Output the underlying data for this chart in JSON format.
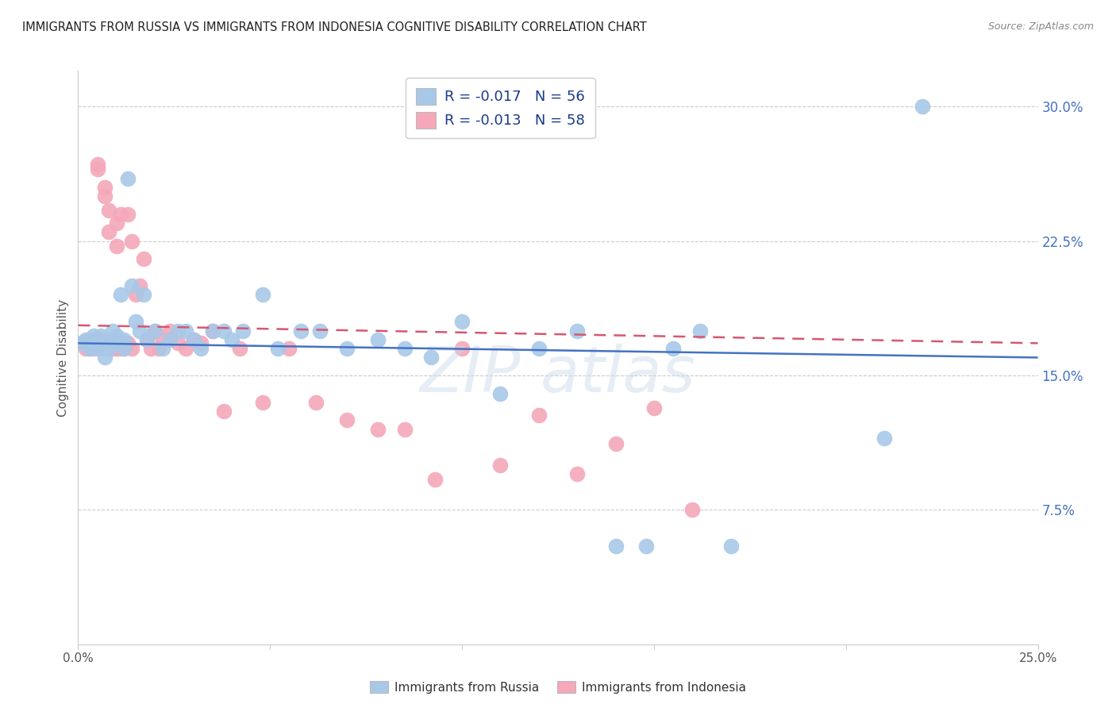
{
  "title": "IMMIGRANTS FROM RUSSIA VS IMMIGRANTS FROM INDONESIA COGNITIVE DISABILITY CORRELATION CHART",
  "source": "Source: ZipAtlas.com",
  "ylabel": "Cognitive Disability",
  "right_yticks": [
    "30.0%",
    "22.5%",
    "15.0%",
    "7.5%"
  ],
  "right_ytick_vals": [
    0.3,
    0.225,
    0.15,
    0.075
  ],
  "legend_r_russia": "R = -0.017",
  "legend_n_russia": "N = 56",
  "legend_r_indonesia": "R = -0.013",
  "legend_n_indonesia": "N = 58",
  "russia_color": "#a8c8e8",
  "indonesia_color": "#f4a8b8",
  "russia_line_color": "#4472c4",
  "indonesia_line_color": "#d45870",
  "xlim": [
    0.0,
    0.25
  ],
  "ylim": [
    0.0,
    0.32
  ],
  "russia_x": [
    0.001,
    0.002,
    0.003,
    0.004,
    0.004,
    0.005,
    0.005,
    0.006,
    0.006,
    0.007,
    0.007,
    0.008,
    0.008,
    0.009,
    0.009,
    0.01,
    0.01,
    0.011,
    0.012,
    0.012,
    0.013,
    0.014,
    0.015,
    0.016,
    0.017,
    0.018,
    0.02,
    0.022,
    0.024,
    0.026,
    0.028,
    0.03,
    0.032,
    0.035,
    0.038,
    0.04,
    0.043,
    0.048,
    0.052,
    0.058,
    0.063,
    0.07,
    0.078,
    0.085,
    0.092,
    0.1,
    0.11,
    0.12,
    0.13,
    0.14,
    0.148,
    0.155,
    0.162,
    0.17,
    0.21,
    0.22
  ],
  "russia_y": [
    0.168,
    0.17,
    0.165,
    0.172,
    0.168,
    0.17,
    0.165,
    0.168,
    0.172,
    0.165,
    0.16,
    0.17,
    0.165,
    0.175,
    0.168,
    0.172,
    0.168,
    0.195,
    0.17,
    0.165,
    0.26,
    0.2,
    0.18,
    0.175,
    0.195,
    0.17,
    0.175,
    0.165,
    0.17,
    0.175,
    0.175,
    0.17,
    0.165,
    0.175,
    0.175,
    0.17,
    0.175,
    0.195,
    0.165,
    0.175,
    0.175,
    0.165,
    0.17,
    0.165,
    0.16,
    0.18,
    0.14,
    0.165,
    0.175,
    0.055,
    0.055,
    0.165,
    0.175,
    0.055,
    0.115,
    0.3
  ],
  "indonesia_x": [
    0.001,
    0.002,
    0.003,
    0.003,
    0.004,
    0.004,
    0.005,
    0.005,
    0.006,
    0.006,
    0.007,
    0.007,
    0.007,
    0.008,
    0.008,
    0.009,
    0.009,
    0.01,
    0.01,
    0.01,
    0.011,
    0.011,
    0.012,
    0.012,
    0.013,
    0.013,
    0.014,
    0.014,
    0.015,
    0.016,
    0.017,
    0.018,
    0.019,
    0.02,
    0.021,
    0.022,
    0.024,
    0.026,
    0.028,
    0.03,
    0.032,
    0.035,
    0.038,
    0.042,
    0.048,
    0.055,
    0.062,
    0.07,
    0.078,
    0.085,
    0.093,
    0.1,
    0.11,
    0.12,
    0.13,
    0.14,
    0.15,
    0.16
  ],
  "indonesia_y": [
    0.168,
    0.165,
    0.165,
    0.17,
    0.165,
    0.17,
    0.268,
    0.265,
    0.168,
    0.17,
    0.25,
    0.255,
    0.168,
    0.242,
    0.23,
    0.165,
    0.17,
    0.222,
    0.235,
    0.165,
    0.24,
    0.165,
    0.168,
    0.165,
    0.24,
    0.168,
    0.225,
    0.165,
    0.195,
    0.2,
    0.215,
    0.17,
    0.165,
    0.175,
    0.165,
    0.17,
    0.175,
    0.168,
    0.165,
    0.17,
    0.168,
    0.175,
    0.13,
    0.165,
    0.135,
    0.165,
    0.135,
    0.125,
    0.12,
    0.12,
    0.092,
    0.165,
    0.1,
    0.128,
    0.095,
    0.112,
    0.132,
    0.075
  ]
}
